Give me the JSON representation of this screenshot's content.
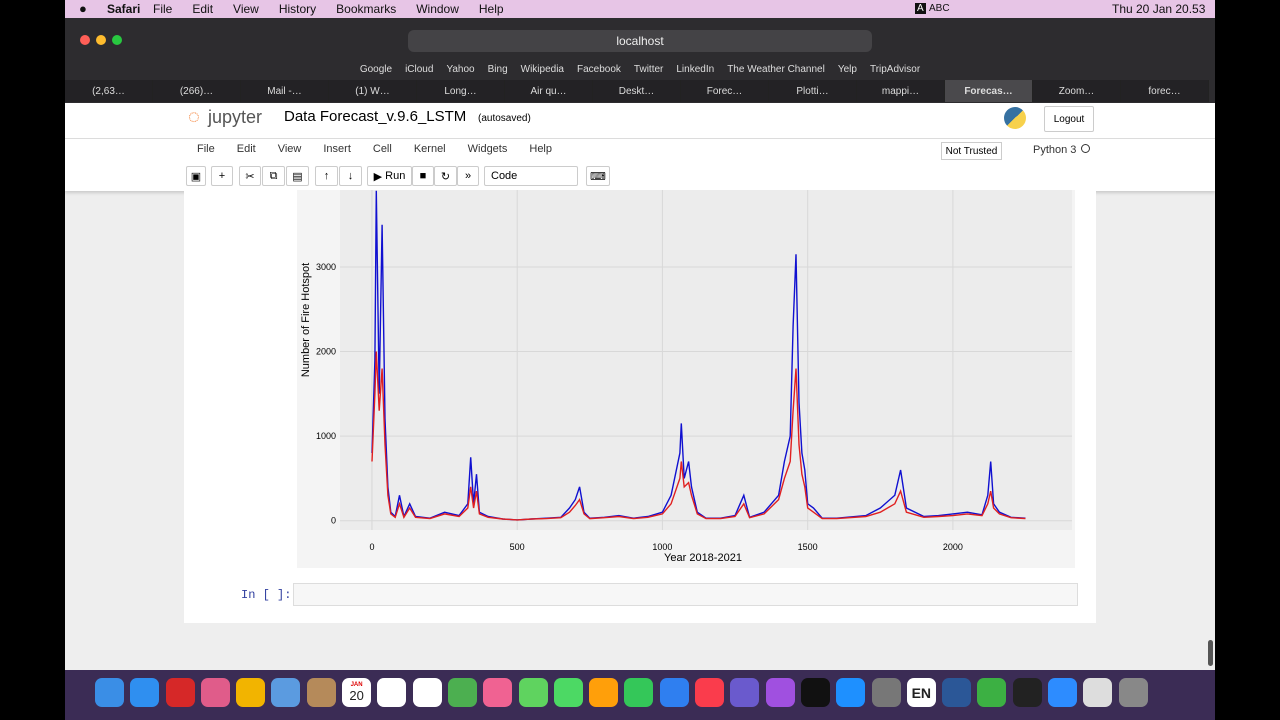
{
  "menubar": {
    "app": "Safari",
    "items": [
      "File",
      "Edit",
      "View",
      "History",
      "Bookmarks",
      "Window",
      "Help"
    ],
    "input": "ABC",
    "clock": "Thu 20 Jan  20.53"
  },
  "browser": {
    "url": "localhost",
    "bookmarks": [
      "Google",
      "iCloud",
      "Yahoo",
      "Bing",
      "Wikipedia",
      "Facebook",
      "Twitter",
      "LinkedIn",
      "The Weather Channel",
      "Yelp",
      "TripAdvisor"
    ],
    "tabs": [
      "(2,63…",
      "(266)…",
      "Mail -…",
      "(1) W…",
      "Long…",
      "Air qu…",
      "Deskt…",
      "Forec…",
      "Plotti…",
      "mappi…",
      "Forecas…",
      "Zoom…",
      "forec…"
    ],
    "active_tab": 10
  },
  "jupyter": {
    "logo": "jupyter",
    "title": "Data Forecast_v.9.6_LSTM",
    "status": "(autosaved)",
    "logout": "Logout",
    "menu": [
      "File",
      "Edit",
      "View",
      "Insert",
      "Cell",
      "Kernel",
      "Widgets",
      "Help"
    ],
    "trust": "Not Trusted",
    "kernel": "Python 3",
    "run": "Run",
    "cell_type": "Code",
    "prompt": "In [ ]:"
  },
  "dock": {
    "month": "JAN",
    "day": "20",
    "lang": "EN"
  },
  "chart_data": {
    "type": "line",
    "xlabel": "Year 2018-2021",
    "ylabel": "Number of Fire Hotspot",
    "x": [
      0,
      10,
      15,
      25,
      35,
      45,
      55,
      65,
      80,
      95,
      110,
      130,
      150,
      200,
      250,
      300,
      330,
      340,
      350,
      360,
      370,
      400,
      450,
      500,
      550,
      600,
      650,
      680,
      700,
      715,
      730,
      750,
      800,
      850,
      900,
      950,
      1000,
      1030,
      1060,
      1065,
      1075,
      1090,
      1100,
      1120,
      1150,
      1200,
      1250,
      1280,
      1300,
      1350,
      1400,
      1420,
      1440,
      1450,
      1460,
      1470,
      1480,
      1490,
      1500,
      1520,
      1550,
      1600,
      1700,
      1750,
      1800,
      1820,
      1840,
      1900,
      1950,
      2000,
      2050,
      2100,
      2120,
      2130,
      2140,
      2160,
      2200,
      2250
    ],
    "series": [
      {
        "color": "#1010d0",
        "values": [
          800,
          1900,
          3900,
          1500,
          3500,
          1200,
          400,
          100,
          50,
          300,
          50,
          200,
          50,
          30,
          100,
          60,
          200,
          750,
          200,
          550,
          100,
          50,
          20,
          10,
          20,
          30,
          40,
          150,
          250,
          400,
          100,
          30,
          40,
          60,
          30,
          50,
          100,
          300,
          800,
          1150,
          500,
          700,
          400,
          100,
          30,
          30,
          60,
          300,
          40,
          100,
          300,
          700,
          1000,
          2300,
          3150,
          1400,
          800,
          600,
          200,
          150,
          30,
          30,
          60,
          150,
          300,
          600,
          150,
          50,
          60,
          80,
          100,
          70,
          300,
          700,
          200,
          100,
          40,
          30
        ]
      },
      {
        "color": "#e02020",
        "values": [
          700,
          1500,
          2000,
          1300,
          1800,
          900,
          300,
          80,
          40,
          200,
          40,
          150,
          40,
          25,
          80,
          50,
          150,
          400,
          150,
          350,
          80,
          40,
          20,
          10,
          20,
          25,
          35,
          100,
          180,
          250,
          80,
          25,
          35,
          50,
          25,
          40,
          80,
          200,
          500,
          700,
          400,
          450,
          300,
          80,
          25,
          25,
          50,
          200,
          35,
          80,
          250,
          500,
          700,
          1300,
          1800,
          900,
          550,
          400,
          150,
          100,
          25,
          25,
          50,
          100,
          200,
          350,
          100,
          40,
          50,
          60,
          80,
          60,
          200,
          350,
          150,
          80,
          35,
          25
        ]
      }
    ],
    "xlim": [
      -110,
      2410
    ],
    "ylim": [
      -110,
      3910
    ],
    "xticks": [
      0,
      500,
      1000,
      1500,
      2000
    ],
    "yticks": [
      0,
      1000,
      2000,
      3000
    ],
    "grid": true
  }
}
